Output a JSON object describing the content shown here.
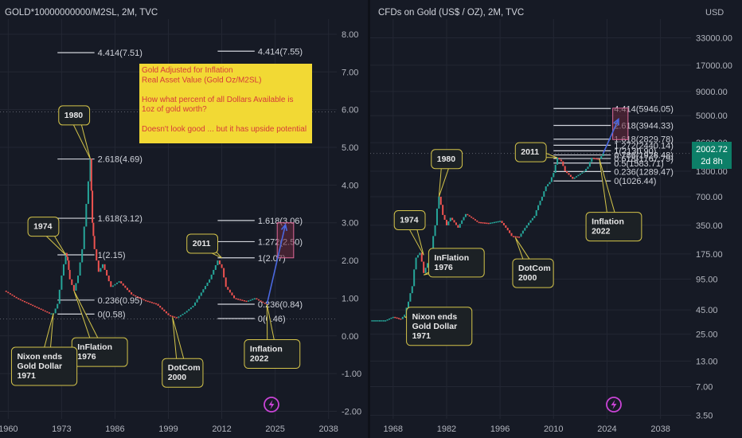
{
  "colors": {
    "background": "#161a25",
    "grid": "#232733",
    "candle_up": "#26a69a",
    "candle_down": "#ef5350",
    "fib_line": "#d1d4dc",
    "callout_border": "#d4c44a",
    "callout_fill": "#1c2125",
    "note_fill": "#f2d934",
    "note_text": "#d63a3a",
    "projection": "#4a68e0",
    "box_stroke": "#e06a9a",
    "box_fill": "#6a2a3e",
    "price_badge": "#0d7f68",
    "lightning": "#c944d6"
  },
  "chart_data": [
    {
      "type": "line",
      "title": "GOLD*10000000000/M2SL, 2M, TVC",
      "xlim": [
        1958,
        2040
      ],
      "ylim": [
        -2.2,
        8.4
      ],
      "x_ticks": [
        "1960",
        "1973",
        "1986",
        "1999",
        "2012",
        "2025",
        "2038"
      ],
      "y_ticks": [
        "8.00",
        "7.00",
        "6.00",
        "5.00",
        "4.00",
        "3.00",
        "2.00",
        "1.00",
        "0.00",
        "-1.00",
        "-2.00"
      ],
      "series": [
        {
          "x": [
            1959,
            1962,
            1965,
            1968,
            1970,
            1971,
            1972,
            1973,
            1974,
            1974.5,
            1975,
            1976,
            1977,
            1978,
            1979,
            1980,
            1980.5,
            1981,
            1982,
            1983,
            1985,
            1987,
            1990,
            1993,
            1996,
            1999,
            2001,
            2003,
            2005,
            2007,
            2009,
            2011,
            2012,
            2013,
            2015,
            2018,
            2020,
            2022,
            2023
          ],
          "values": [
            1.2,
            1.0,
            0.85,
            0.7,
            0.6,
            0.6,
            0.85,
            1.6,
            2.2,
            2.0,
            1.5,
            1.2,
            1.6,
            2.3,
            3.5,
            4.7,
            3.0,
            2.3,
            1.7,
            1.9,
            1.3,
            1.45,
            1.1,
            0.95,
            0.85,
            0.55,
            0.48,
            0.62,
            0.8,
            1.15,
            1.5,
            2.0,
            1.8,
            1.3,
            1.0,
            0.92,
            1.0,
            0.88,
            0.84
          ]
        }
      ],
      "fib_levels": [
        {
          "label": "4.414(7.51)",
          "value": 7.51,
          "x_start": 1972,
          "x_end": 1981
        },
        {
          "label": "2.618(4.69)",
          "value": 4.69,
          "x_start": 1972,
          "x_end": 1981
        },
        {
          "label": "1.618(3.12)",
          "value": 3.12,
          "x_start": 1972,
          "x_end": 1981
        },
        {
          "label": "1(2.15)",
          "value": 2.15,
          "x_start": 1972,
          "x_end": 1981
        },
        {
          "label": "0.236(0.95)",
          "value": 0.95,
          "x_start": 1972,
          "x_end": 1981
        },
        {
          "label": "0(0.58)",
          "value": 0.58,
          "x_start": 1972,
          "x_end": 1981
        },
        {
          "label": "4.414(7.55)",
          "value": 7.55,
          "x_start": 2011,
          "x_end": 2020
        },
        {
          "label": "1.618(3.06)",
          "value": 3.06,
          "x_start": 2011,
          "x_end": 2020
        },
        {
          "label": "1.272(2.50)",
          "value": 2.5,
          "x_start": 2011,
          "x_end": 2020
        },
        {
          "label": "1(2.07)",
          "value": 2.07,
          "x_start": 2011,
          "x_end": 2020
        },
        {
          "label": "0.236(0.84)",
          "value": 0.84,
          "x_start": 2011,
          "x_end": 2020
        },
        {
          "label": "0(0.46)",
          "value": 0.46,
          "x_start": 2011,
          "x_end": 2020
        }
      ],
      "callouts": [
        {
          "lines": [
            "1980"
          ],
          "x": 1980,
          "y": 4.69,
          "box_x": 1972.3,
          "box_y": 6.1
        },
        {
          "lines": [
            "1974"
          ],
          "x": 1974,
          "y": 2.15,
          "box_x": 1964.8,
          "box_y": 3.15
        },
        {
          "lines": [
            "2011"
          ],
          "x": 2012,
          "y": 2.07,
          "box_x": 2003.5,
          "box_y": 2.7
        },
        {
          "lines": [
            "InFlation",
            "1976"
          ],
          "x": 1976,
          "y": 1.2,
          "box_x": 1975.5,
          "box_y": -0.05
        },
        {
          "lines": [
            "DotCom",
            "2000"
          ],
          "x": 2000,
          "y": 0.5,
          "box_x": 1997.5,
          "box_y": -0.6
        },
        {
          "lines": [
            "Inflation",
            "2022"
          ],
          "x": 2023,
          "y": 0.84,
          "box_x": 2017.5,
          "box_y": -0.1
        },
        {
          "lines": [
            "Nixon ends",
            "Gold Dollar",
            "1971"
          ],
          "x": 1971,
          "y": 0.6,
          "box_x": 1960.8,
          "box_y": -0.3
        }
      ],
      "projection": {
        "from": [
          2023,
          0.84
        ],
        "to": [
          2027.5,
          2.95
        ]
      },
      "target_box": {
        "x1": 2025.5,
        "x2": 2029.5,
        "y1": 3.0,
        "y2": 2.07
      },
      "note": {
        "lines": [
          "Gold Adjusted for Inflation",
          "Real Asset Value (Gold Oz/M2SL)",
          "",
          "How what percent of all Dollars Available is",
          "1oz of gold worth?",
          "",
          "Doesn't look good ... but it has upside potential"
        ]
      }
    },
    {
      "type": "line",
      "title": "CFDs on Gold (US$ / OZ), 2M, TVC",
      "currency": "USD",
      "y_scale": "log",
      "xlim": [
        1962,
        2046
      ],
      "ylim": [
        3.2,
        52000
      ],
      "x_ticks": [
        "1968",
        "1982",
        "1996",
        "2010",
        "2024",
        "2038"
      ],
      "y_ticks": [
        "33000.00",
        "17000.00",
        "9000.00",
        "5000.00",
        "2600.00",
        "1300.00",
        "700.00",
        "350.00",
        "175.00",
        "95.00",
        "45.00",
        "25.00",
        "13.00",
        "7.00",
        "3.50"
      ],
      "last_price": "2002.72",
      "countdown": "2d 8h",
      "series": [
        {
          "x": [
            1962,
            1966,
            1968,
            1970,
            1971,
            1972,
            1973,
            1974,
            1975,
            1976,
            1977,
            1978,
            1979,
            1980,
            1981,
            1982,
            1983,
            1985,
            1987,
            1990,
            1993,
            1996,
            1999,
            2001,
            2003,
            2005,
            2007,
            2008,
            2009,
            2010,
            2011,
            2012,
            2013,
            2015,
            2018,
            2019,
            2020,
            2022,
            2023
          ],
          "values": [
            35,
            35,
            38,
            36,
            40,
            55,
            80,
            160,
            180,
            110,
            140,
            190,
            350,
            700,
            450,
            350,
            420,
            330,
            460,
            380,
            370,
            390,
            270,
            265,
            350,
            440,
            700,
            900,
            1000,
            1250,
            1800,
            1650,
            1300,
            1080,
            1300,
            1450,
            1800,
            1750,
            2002.72
          ]
        }
      ],
      "fib_levels": [
        {
          "label": "4.414(5946.05)",
          "value": 5946.05
        },
        {
          "label": "2.618(3944.33)",
          "value": 3944.33
        },
        {
          "label": "1.618(2829.78)",
          "value": 2829.78
        },
        {
          "label": "1.272(2440.14)",
          "value": 2440.14
        },
        {
          "label": "1(2130.90)",
          "value": 2130.9
        },
        {
          "label": "0.786(1928.48)",
          "value": 1928.48
        },
        {
          "label": "0.618(1767.79)",
          "value": 1767.79
        },
        {
          "label": "0.5(1583.71)",
          "value": 1583.71
        },
        {
          "label": "0.236(1289.47)",
          "value": 1289.47
        },
        {
          "label": "0(1026.44)",
          "value": 1026.44
        }
      ],
      "callouts": [
        {
          "lines": [
            "1980"
          ],
          "x": 1980,
          "y": 700,
          "box_x": 1978,
          "box_y": 2200
        },
        {
          "lines": [
            "1974"
          ],
          "x": 1976,
          "y": 170,
          "box_x": 1968.3,
          "box_y": 500
        },
        {
          "lines": [
            "2011"
          ],
          "x": 2011,
          "y": 1800,
          "box_x": 2000,
          "box_y": 2600
        },
        {
          "lines": [
            "InFlation",
            "1976"
          ],
          "x": 1976,
          "y": 105,
          "box_x": 1977.3,
          "box_y": 200
        },
        {
          "lines": [
            "DotCom",
            "2000"
          ],
          "x": 2000,
          "y": 260,
          "box_x": 1999.3,
          "box_y": 155
        },
        {
          "lines": [
            "Inflation",
            "2022"
          ],
          "x": 2022,
          "y": 1750,
          "box_x": 2018.5,
          "box_y": 480
        },
        {
          "lines": [
            "Nixon ends",
            "Gold Dollar",
            "1971"
          ],
          "x": 1971,
          "y": 38,
          "box_x": 1971.5,
          "box_y": 48
        }
      ],
      "projection": {
        "from": [
          2023,
          2002.72
        ],
        "to": [
          2027,
          4600
        ]
      },
      "target_box": {
        "x1": 2025.5,
        "x2": 2029.5,
        "y1": 6000,
        "y2": 2800
      }
    }
  ]
}
